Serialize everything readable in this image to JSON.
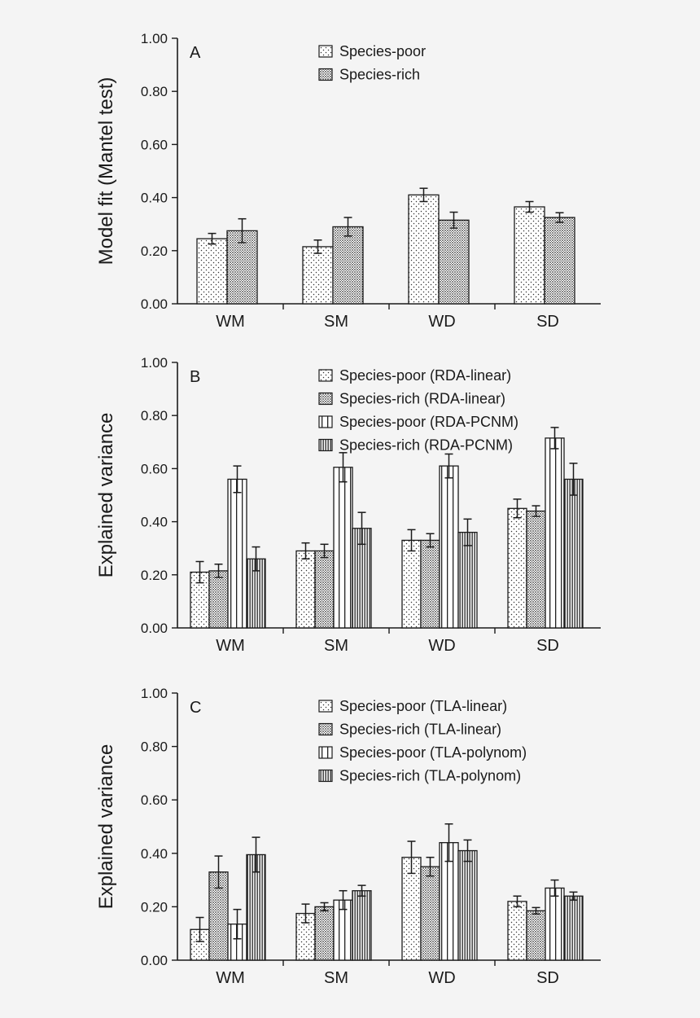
{
  "chart_data": [
    {
      "type": "bar",
      "panel_label": "A",
      "ylabel": "Model fit (Mantel test)",
      "xlabel": "",
      "categories": [
        "WM",
        "SM",
        "WD",
        "SD"
      ],
      "ylim": [
        0,
        1
      ],
      "yticks": [
        "0.00",
        "0.20",
        "0.40",
        "0.60",
        "0.80",
        "1.00"
      ],
      "legend_position": "top-center",
      "series": [
        {
          "name": "Species-poor",
          "pattern": "sparse-dots",
          "values": [
            0.245,
            0.215,
            0.41,
            0.365
          ],
          "errors": [
            0.02,
            0.025,
            0.025,
            0.02
          ]
        },
        {
          "name": "Species-rich",
          "pattern": "dense-dots",
          "values": [
            0.275,
            0.29,
            0.315,
            0.325
          ],
          "errors": [
            0.045,
            0.035,
            0.03,
            0.018
          ]
        }
      ]
    },
    {
      "type": "bar",
      "panel_label": "B",
      "ylabel": "Explained variance",
      "xlabel": "",
      "categories": [
        "WM",
        "SM",
        "WD",
        "SD"
      ],
      "ylim": [
        0,
        1
      ],
      "yticks": [
        "0.00",
        "0.20",
        "0.40",
        "0.60",
        "0.80",
        "1.00"
      ],
      "legend_position": "top-center",
      "series": [
        {
          "name": "Species-poor (RDA-linear)",
          "pattern": "sparse-dots",
          "values": [
            0.21,
            0.29,
            0.33,
            0.45
          ],
          "errors": [
            0.04,
            0.03,
            0.04,
            0.035
          ]
        },
        {
          "name": "Species-rich (RDA-linear)",
          "pattern": "dense-dots",
          "values": [
            0.215,
            0.29,
            0.33,
            0.44
          ],
          "errors": [
            0.025,
            0.025,
            0.025,
            0.02
          ]
        },
        {
          "name": "Species-poor (RDA-PCNM)",
          "pattern": "sparse-vlines",
          "values": [
            0.56,
            0.605,
            0.61,
            0.715
          ],
          "errors": [
            0.05,
            0.055,
            0.045,
            0.04
          ]
        },
        {
          "name": "Species-rich (RDA-PCNM)",
          "pattern": "dense-vlines",
          "values": [
            0.26,
            0.375,
            0.36,
            0.56
          ],
          "errors": [
            0.045,
            0.06,
            0.05,
            0.06
          ]
        }
      ]
    },
    {
      "type": "bar",
      "panel_label": "C",
      "ylabel": "Explained variance",
      "xlabel": "",
      "categories": [
        "WM",
        "SM",
        "WD",
        "SD"
      ],
      "ylim": [
        0,
        1
      ],
      "yticks": [
        "0.00",
        "0.20",
        "0.40",
        "0.60",
        "0.80",
        "1.00"
      ],
      "legend_position": "top-center",
      "series": [
        {
          "name": "Species-poor (TLA-linear)",
          "pattern": "sparse-dots",
          "values": [
            0.115,
            0.175,
            0.385,
            0.22
          ],
          "errors": [
            0.045,
            0.035,
            0.06,
            0.02
          ]
        },
        {
          "name": "Species-rich (TLA-linear)",
          "pattern": "dense-dots",
          "values": [
            0.33,
            0.2,
            0.35,
            0.185
          ],
          "errors": [
            0.06,
            0.015,
            0.035,
            0.012
          ]
        },
        {
          "name": "Species-poor (TLA-polynom)",
          "pattern": "sparse-vlines",
          "values": [
            0.135,
            0.225,
            0.44,
            0.27
          ],
          "errors": [
            0.055,
            0.035,
            0.07,
            0.03
          ]
        },
        {
          "name": "Species-rich (TLA-polynom)",
          "pattern": "dense-vlines",
          "values": [
            0.395,
            0.26,
            0.41,
            0.24
          ],
          "errors": [
            0.065,
            0.02,
            0.04,
            0.015
          ]
        }
      ]
    }
  ]
}
